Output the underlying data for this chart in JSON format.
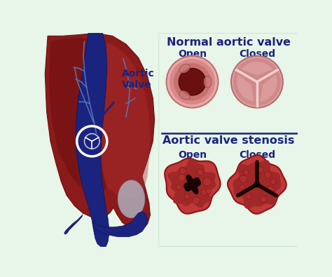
{
  "bg_color": "#e8f5e9",
  "title_normal": "Normal aortic valve",
  "title_stenosis": "Aortic valve stenosis",
  "label_open": "Open",
  "label_closed": "Closed",
  "label_aortic_valve": "Aortic\nValve",
  "title_color": "#1a237e",
  "label_color": "#1a237e",
  "divider_color": "#1a237e",
  "arrow_color": "#1a237e",
  "heart_main": "#8b1a1a",
  "heart_dark": "#6b0f0f",
  "heart_mid": "#a02020",
  "heart_light": "#b03030",
  "aorta_color": "#1a237e",
  "vessel_color": "#5c7aba",
  "white": "#ffffff",
  "normal_pink": "#e8a0a0",
  "normal_pink2": "#d47878",
  "normal_dark": "#8b1515",
  "normal_mid": "#c06060",
  "stenosis_red": "#c03030",
  "stenosis_dark": "#3a0505",
  "stenosis_mid": "#8b1515",
  "stenosis_light": "#d05050",
  "gray_light": "#c8d0d8"
}
